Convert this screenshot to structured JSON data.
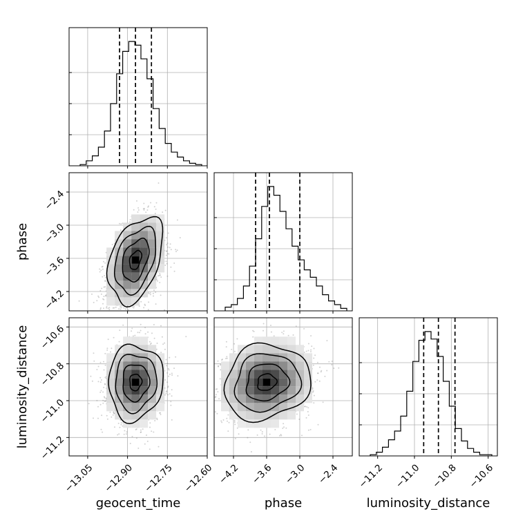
{
  "chart_data": {
    "type": "corner",
    "parameters": [
      "geocent_time",
      "phase",
      "luminosity_distance"
    ],
    "axis_labels": {
      "x": [
        "geocent_time",
        "phase",
        "luminosity_distance"
      ],
      "y": [
        "phase",
        "luminosity_distance"
      ]
    },
    "ranges": {
      "geocent_time": [
        -13.12,
        -12.6
      ],
      "phase": [
        -4.55,
        -2.05
      ],
      "luminosity_distance": [
        -11.3,
        -10.55
      ]
    },
    "ticks": {
      "geocent_time": [
        -13.05,
        -12.9,
        -12.75,
        -12.6
      ],
      "phase": [
        -4.2,
        -3.6,
        -3.0,
        -2.4
      ],
      "luminosity_distance": [
        -11.2,
        -11.0,
        -10.8,
        -10.6
      ]
    },
    "tick_labels": {
      "geocent_time": [
        "−13.05",
        "−12.90",
        "−12.75",
        "−12.60"
      ],
      "phase": [
        "−4.2",
        "−3.6",
        "−3.0",
        "−2.4"
      ],
      "luminosity_distance": [
        "−11.2",
        "−11.0",
        "−10.8",
        "−10.6"
      ]
    },
    "quantiles": {
      "geocent_time": [
        -12.93,
        -12.87,
        -12.81
      ],
      "phase": [
        -3.8,
        -3.55,
        -3.0
      ],
      "luminosity_distance": [
        -10.95,
        -10.87,
        -10.78
      ]
    },
    "histograms": {
      "geocent_time": [
        0.01,
        0.04,
        0.08,
        0.15,
        0.28,
        0.5,
        0.74,
        0.92,
        1.0,
        0.97,
        0.86,
        0.7,
        0.46,
        0.3,
        0.18,
        0.11,
        0.07,
        0.04,
        0.02,
        0.01
      ],
      "phase": [
        0.03,
        0.05,
        0.1,
        0.2,
        0.36,
        0.58,
        0.84,
        1.0,
        0.93,
        0.8,
        0.66,
        0.52,
        0.41,
        0.33,
        0.27,
        0.2,
        0.13,
        0.08,
        0.05,
        0.02
      ],
      "luminosity_distance": [
        0.01,
        0.03,
        0.07,
        0.13,
        0.2,
        0.32,
        0.52,
        0.76,
        0.93,
        1.0,
        0.94,
        0.8,
        0.6,
        0.4,
        0.22,
        0.12,
        0.06,
        0.03,
        0.01,
        0.01
      ]
    },
    "joint_2d": [
      {
        "x": "geocent_time",
        "y": "phase",
        "peak": [
          -12.87,
          -3.63
        ],
        "sigma": [
          0.05,
          0.38
        ],
        "correlation": 0.38
      },
      {
        "x": "geocent_time",
        "y": "luminosity_distance",
        "peak": [
          -12.87,
          -10.9
        ],
        "sigma": [
          0.05,
          0.1
        ],
        "correlation": 0.05
      },
      {
        "x": "phase",
        "y": "luminosity_distance",
        "peak": [
          -3.6,
          -10.9
        ],
        "sigma": [
          0.38,
          0.1
        ],
        "correlation": 0.12
      }
    ],
    "grid": true
  }
}
